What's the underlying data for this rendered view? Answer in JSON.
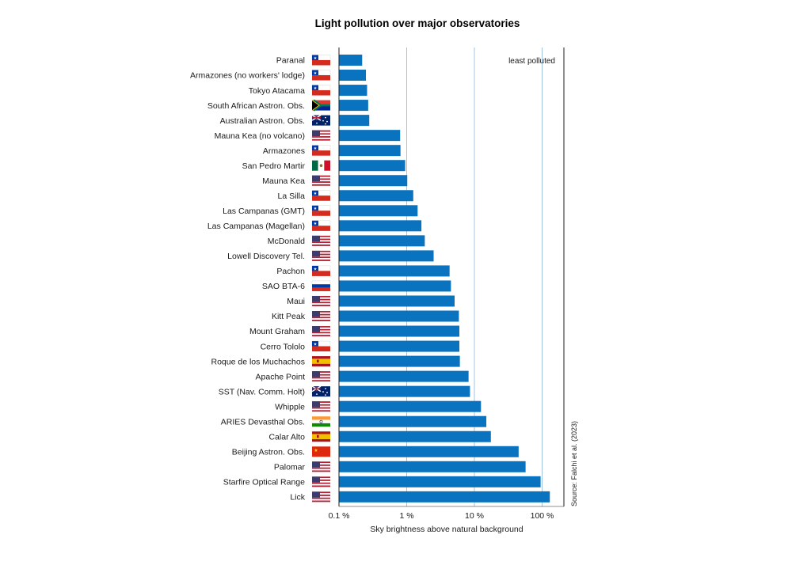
{
  "chart_data": {
    "type": "bar",
    "orientation": "horizontal",
    "title": "Light pollution over major observatories",
    "xlabel": "Sky brightness above natural background",
    "ylabel": "",
    "xscale": "log",
    "xlim": [
      0.1,
      120
    ],
    "xticks": [
      0.1,
      1,
      10,
      100
    ],
    "xtick_labels": [
      "0.1 %",
      "1 %",
      "10 %",
      "100 %"
    ],
    "grid": "vertical",
    "annotation": "least polluted",
    "source": "Source: Falchi et al. (2023)",
    "bar_color": "#0a73bf",
    "grid_color": "#8ab8dc",
    "categories": [
      "Paranal",
      "Armazones (no workers' lodge)",
      "Tokyo Atacama",
      "South African Astron. Obs.",
      "Australian Astron. Obs.",
      "Mauna Kea (no volcano)",
      "Armazones",
      "San Pedro Martir",
      "Mauna Kea",
      "La Silla",
      "Las Campanas (GMT)",
      "Las Campanas (Magellan)",
      "McDonald",
      "Lowell Discovery Tel.",
      "Pachon",
      "SAO BTA-6",
      "Maui",
      "Kitt Peak",
      "Mount Graham",
      "Cerro Tololo",
      "Roque de los Muchachos",
      "Apache Point",
      "SST (Nav. Comm. Holt)",
      "Whipple",
      "ARIES Devasthal Obs.",
      "Calar Alto",
      "Beijing Astron. Obs.",
      "Palomar",
      "Starfire Optical Range",
      "Lick"
    ],
    "flags": [
      "chile-flag",
      "chile-flag",
      "chile-flag",
      "south-africa-flag",
      "australia-flag",
      "usa-flag",
      "chile-flag",
      "mexico-flag",
      "usa-flag",
      "chile-flag",
      "chile-flag",
      "chile-flag",
      "usa-flag",
      "usa-flag",
      "chile-flag",
      "russia-flag",
      "usa-flag",
      "usa-flag",
      "usa-flag",
      "chile-flag",
      "spain-flag",
      "usa-flag",
      "australia-flag",
      "usa-flag",
      "india-flag",
      "spain-flag",
      "china-flag",
      "usa-flag",
      "usa-flag",
      "usa-flag"
    ],
    "values": [
      0.22,
      0.25,
      0.26,
      0.27,
      0.28,
      0.8,
      0.81,
      0.95,
      1.02,
      1.25,
      1.45,
      1.65,
      1.85,
      2.5,
      4.3,
      4.5,
      5.1,
      5.9,
      6.0,
      6.0,
      6.1,
      8.2,
      8.6,
      12.5,
      15.0,
      17.5,
      45.0,
      57.0,
      95.0,
      130.0
    ]
  }
}
